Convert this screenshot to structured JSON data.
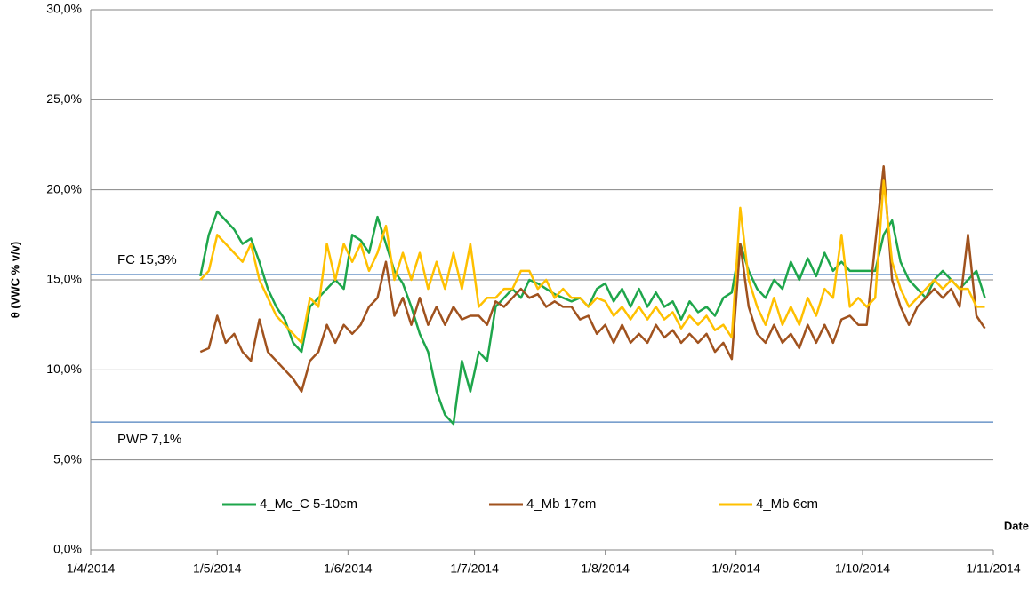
{
  "chart_data": {
    "type": "line",
    "y_label": "θ (VWC % v/v)",
    "x_label": "Date",
    "x": [
      "2014-04-27",
      "2014-04-29",
      "2014-05-01",
      "2014-05-03",
      "2014-05-05",
      "2014-05-07",
      "2014-05-09",
      "2014-05-11",
      "2014-05-13",
      "2014-05-15",
      "2014-05-17",
      "2014-05-19",
      "2014-05-21",
      "2014-05-23",
      "2014-05-25",
      "2014-05-27",
      "2014-05-29",
      "2014-05-31",
      "2014-06-02",
      "2014-06-04",
      "2014-06-06",
      "2014-06-08",
      "2014-06-10",
      "2014-06-12",
      "2014-06-14",
      "2014-06-16",
      "2014-06-18",
      "2014-06-20",
      "2014-06-22",
      "2014-06-24",
      "2014-06-26",
      "2014-06-28",
      "2014-06-30",
      "2014-07-02",
      "2014-07-04",
      "2014-07-06",
      "2014-07-08",
      "2014-07-10",
      "2014-07-12",
      "2014-07-14",
      "2014-07-16",
      "2014-07-18",
      "2014-07-20",
      "2014-07-22",
      "2014-07-24",
      "2014-07-26",
      "2014-07-28",
      "2014-07-30",
      "2014-08-01",
      "2014-08-03",
      "2014-08-05",
      "2014-08-07",
      "2014-08-09",
      "2014-08-11",
      "2014-08-13",
      "2014-08-15",
      "2014-08-17",
      "2014-08-19",
      "2014-08-21",
      "2014-08-23",
      "2014-08-25",
      "2014-08-27",
      "2014-08-29",
      "2014-08-31",
      "2014-09-02",
      "2014-09-04",
      "2014-09-06",
      "2014-09-08",
      "2014-09-10",
      "2014-09-12",
      "2014-09-14",
      "2014-09-16",
      "2014-09-18",
      "2014-09-20",
      "2014-09-22",
      "2014-09-24",
      "2014-09-26",
      "2014-09-28",
      "2014-09-30",
      "2014-10-02",
      "2014-10-04",
      "2014-10-06",
      "2014-10-08",
      "2014-10-10",
      "2014-10-12",
      "2014-10-14",
      "2014-10-16",
      "2014-10-18",
      "2014-10-20",
      "2014-10-22",
      "2014-10-24",
      "2014-10-26",
      "2014-10-28",
      "2014-10-30"
    ],
    "series": [
      {
        "name": "4_Mc_C 5-10cm",
        "color": "#1ea64b",
        "values": [
          15.2,
          17.5,
          18.8,
          18.3,
          17.8,
          17.0,
          17.3,
          16.0,
          14.5,
          13.5,
          12.8,
          11.5,
          11.0,
          13.5,
          14.0,
          14.5,
          15.0,
          14.5,
          17.5,
          17.2,
          16.5,
          18.5,
          17.0,
          15.5,
          14.8,
          13.5,
          12.0,
          11.0,
          8.8,
          7.5,
          7.0,
          10.5,
          8.8,
          11.0,
          10.5,
          13.5,
          14.0,
          14.5,
          14.0,
          15.0,
          14.8,
          14.5,
          14.2,
          14.0,
          13.8,
          14.0,
          13.5,
          14.5,
          14.8,
          13.8,
          14.5,
          13.5,
          14.5,
          13.5,
          14.3,
          13.5,
          13.8,
          12.8,
          13.8,
          13.2,
          13.5,
          13.0,
          14.0,
          14.3,
          17.0,
          15.5,
          14.5,
          14.0,
          15.0,
          14.5,
          16.0,
          15.0,
          16.2,
          15.2,
          16.5,
          15.5,
          16.0,
          15.5,
          15.5,
          15.5,
          15.5,
          17.5,
          18.3,
          16.0,
          15.0,
          14.5,
          14.0,
          15.0,
          15.5,
          15.0,
          14.5,
          15.0,
          15.5,
          14.0
        ]
      },
      {
        "name": "4_Mb 17cm",
        "color": "#a0521e",
        "values": [
          11.0,
          11.2,
          13.0,
          11.5,
          12.0,
          11.0,
          10.5,
          12.8,
          11.0,
          10.5,
          10.0,
          9.5,
          8.8,
          10.5,
          11.0,
          12.5,
          11.5,
          12.5,
          12.0,
          12.5,
          13.5,
          14.0,
          16.0,
          13.0,
          14.0,
          12.5,
          14.0,
          12.5,
          13.5,
          12.5,
          13.5,
          12.8,
          13.0,
          13.0,
          12.5,
          13.8,
          13.5,
          14.0,
          14.5,
          14.0,
          14.2,
          13.5,
          13.8,
          13.5,
          13.5,
          12.8,
          13.0,
          12.0,
          12.5,
          11.5,
          12.5,
          11.5,
          12.0,
          11.5,
          12.5,
          11.8,
          12.2,
          11.5,
          12.0,
          11.5,
          12.0,
          11.0,
          11.5,
          10.6,
          17.0,
          13.5,
          12.0,
          11.5,
          12.5,
          11.5,
          12.0,
          11.2,
          12.5,
          11.5,
          12.5,
          11.5,
          12.8,
          13.0,
          12.5,
          12.5,
          17.0,
          21.3,
          15.0,
          13.5,
          12.5,
          13.5,
          14.0,
          14.5,
          14.0,
          14.5,
          13.5,
          17.5,
          13.0,
          12.3
        ]
      },
      {
        "name": "4_Mb 6cm",
        "color": "#ffc000",
        "values": [
          15.0,
          15.5,
          17.5,
          17.0,
          16.5,
          16.0,
          17.0,
          15.0,
          14.0,
          13.0,
          12.5,
          12.0,
          11.5,
          14.0,
          13.5,
          17.0,
          15.0,
          17.0,
          16.0,
          17.0,
          15.5,
          16.5,
          18.0,
          15.0,
          16.5,
          15.0,
          16.5,
          14.5,
          16.0,
          14.5,
          16.5,
          14.5,
          17.0,
          13.5,
          14.0,
          14.0,
          14.5,
          14.5,
          15.5,
          15.5,
          14.5,
          15.0,
          14.0,
          14.5,
          14.0,
          14.0,
          13.5,
          14.0,
          13.8,
          13.0,
          13.5,
          12.8,
          13.5,
          12.8,
          13.5,
          12.8,
          13.2,
          12.3,
          13.0,
          12.5,
          13.0,
          12.2,
          12.5,
          11.8,
          19.0,
          15.0,
          13.5,
          12.5,
          14.0,
          12.5,
          13.5,
          12.5,
          14.0,
          13.0,
          14.5,
          14.0,
          17.5,
          13.5,
          14.0,
          13.5,
          14.0,
          20.5,
          16.0,
          14.5,
          13.5,
          14.0,
          14.5,
          15.0,
          14.5,
          15.0,
          14.5,
          14.5,
          13.5,
          13.5
        ]
      }
    ],
    "reference_lines": [
      {
        "value": 15.3,
        "label": "FC 15,3%",
        "color": "#4f81bd"
      },
      {
        "value": 7.1,
        "label": "PWP 7,1%",
        "color": "#4f81bd"
      }
    ],
    "xlim": [
      "2014-04-01",
      "2014-11-01"
    ],
    "xticks": [
      {
        "value": "2014-04-01",
        "label": "1/4/2014"
      },
      {
        "value": "2014-05-01",
        "label": "1/5/2014"
      },
      {
        "value": "2014-06-01",
        "label": "1/6/2014"
      },
      {
        "value": "2014-07-01",
        "label": "1/7/2014"
      },
      {
        "value": "2014-08-01",
        "label": "1/8/2014"
      },
      {
        "value": "2014-09-01",
        "label": "1/9/2014"
      },
      {
        "value": "2014-10-01",
        "label": "1/10/2014"
      },
      {
        "value": "2014-11-01",
        "label": "1/11/2014"
      }
    ],
    "ylim": [
      0,
      30
    ],
    "yticks": [
      {
        "value": 0,
        "label": "0,0%"
      },
      {
        "value": 5,
        "label": "5,0%"
      },
      {
        "value": 10,
        "label": "10,0%"
      },
      {
        "value": 15,
        "label": "15,0%"
      },
      {
        "value": 20,
        "label": "20,0%"
      },
      {
        "value": 25,
        "label": "25,0%"
      },
      {
        "value": 30,
        "label": "30,0%"
      }
    ],
    "grid": true,
    "legend": "bottom"
  }
}
